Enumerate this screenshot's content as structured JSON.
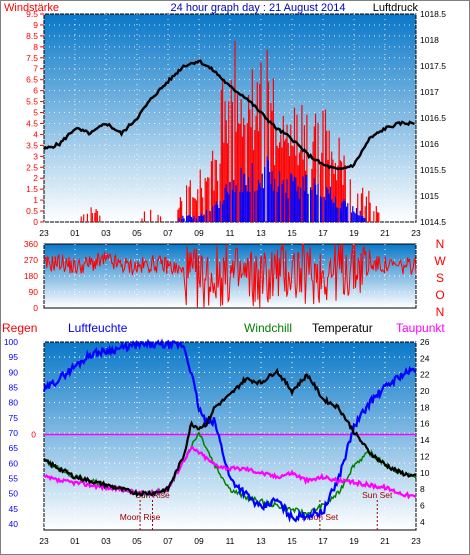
{
  "header": {
    "left_label": "Windstärke",
    "center_title": "24 hour graph day : 21 August 2014",
    "right_label": "Luftdruck"
  },
  "colors": {
    "wind": "#ff0000",
    "wind_gust": "#0000ff",
    "pressure": "#000000",
    "direction": "#ff0000",
    "humidity": "#0000ff",
    "windchill": "#008000",
    "temperature": "#000000",
    "dewpoint": "#ff00ff",
    "rain": "#ff0000",
    "plot_top": "#0a78c8",
    "plot_bottom": "#ffffff"
  },
  "chart_data": [
    {
      "type": "line",
      "name": "wind-pressure",
      "left_axis": {
        "ticks": [
          "0",
          "0.5",
          "1",
          "1.5",
          "2",
          "2.5",
          "3",
          "3.5",
          "4",
          "4.5",
          "5",
          "5.5",
          "6",
          "6.5",
          "7",
          "7.5",
          "8",
          "8.5",
          "9",
          "9.5"
        ],
        "range": [
          0,
          9.5
        ]
      },
      "right_axis": {
        "ticks": [
          "1014.5",
          "1015",
          "1015.5",
          "1016",
          "1016.5",
          "1017",
          "1017.5",
          "1018",
          "1018.5"
        ],
        "range": [
          1014.5,
          1018.5
        ]
      },
      "x_ticks": [
        "23",
        "01",
        "03",
        "05",
        "07",
        "09",
        "11",
        "13",
        "15",
        "17",
        "19",
        "21",
        "23"
      ],
      "pressure": {
        "hours": [
          0,
          1,
          2,
          3,
          4,
          5,
          6,
          7,
          8,
          9,
          10,
          11,
          12,
          13,
          14,
          15,
          16,
          17,
          18,
          19,
          20,
          21,
          22,
          23,
          24
        ],
        "values": [
          1015.9,
          1016.0,
          1016.3,
          1016.2,
          1016.4,
          1016.2,
          1016.5,
          1016.9,
          1017.2,
          1017.5,
          1017.6,
          1017.4,
          1017.1,
          1016.9,
          1016.6,
          1016.3,
          1016.1,
          1015.8,
          1015.6,
          1015.5,
          1015.6,
          1016.1,
          1016.3,
          1016.4,
          1016.4
        ]
      },
      "wind_avg": {
        "hours": [
          0,
          1,
          2,
          3,
          4,
          5,
          6,
          7,
          8,
          9,
          10,
          11,
          12,
          13,
          14,
          15,
          16,
          17,
          18,
          19,
          20,
          21,
          22,
          23,
          24
        ],
        "values": [
          0,
          0,
          0,
          0,
          0,
          0,
          0,
          0,
          0,
          0.3,
          0.3,
          0.8,
          2.0,
          2.5,
          3.0,
          2.5,
          2.0,
          2.0,
          1.8,
          1.2,
          0.8,
          0,
          0,
          0,
          0
        ]
      },
      "wind_gust": {
        "hours": [
          0,
          1,
          2,
          3,
          4,
          5,
          6,
          7,
          8,
          9,
          10,
          11,
          12,
          13,
          14,
          15,
          16,
          17,
          18,
          19,
          20,
          21,
          22,
          23,
          24
        ],
        "values": [
          0,
          0,
          0,
          1.0,
          0,
          0,
          0,
          1.0,
          0,
          1.5,
          2.5,
          3.5,
          9.5,
          6.0,
          9.5,
          6.0,
          5.5,
          5.5,
          5.5,
          4.5,
          2.0,
          1.5,
          0,
          0,
          0
        ]
      }
    },
    {
      "type": "scatter",
      "name": "wind-direction",
      "left_axis": {
        "ticks": [
          "360",
          "270",
          "180",
          "90",
          "0"
        ],
        "range": [
          0,
          360
        ]
      },
      "right_labels": [
        "N",
        "W",
        "S",
        "O",
        "N"
      ],
      "direction": {
        "hours": [
          0,
          1,
          2,
          3,
          4,
          5,
          6,
          7,
          8,
          9,
          10,
          11,
          12,
          13,
          14,
          15,
          16,
          17,
          18,
          19,
          20,
          21,
          22,
          23,
          24
        ],
        "values": [
          240,
          260,
          230,
          250,
          270,
          240,
          230,
          250,
          240,
          200,
          150,
          180,
          190,
          170,
          160,
          200,
          210,
          190,
          200,
          220,
          230,
          250,
          240,
          230,
          240
        ]
      }
    },
    {
      "type": "line",
      "name": "humidity-temperature",
      "legend": [
        "Regen",
        "Luftfeuchte",
        "Windchill",
        "Temperatur",
        "Taupunkt"
      ],
      "left_axis": {
        "ticks": [
          "100",
          "95",
          "90",
          "85",
          "80",
          "75",
          "70",
          "65",
          "60",
          "55",
          "50",
          "45",
          "40"
        ],
        "range": [
          38,
          100
        ],
        "marker_label": "0",
        "marker_value": 69.5
      },
      "right_axis": {
        "ticks": [
          "26",
          "24",
          "22",
          "20",
          "18",
          "16",
          "14",
          "12",
          "10",
          "8",
          "6",
          "4"
        ],
        "range": [
          3,
          26
        ]
      },
      "x_ticks": [
        "23",
        "01",
        "03",
        "05",
        "07",
        "09",
        "11",
        "13",
        "15",
        "17",
        "19",
        "21",
        "23"
      ],
      "events": [
        {
          "label": "Moon Rise",
          "hour": 6.2
        },
        {
          "label": "Sun Rise",
          "hour": 7.0
        },
        {
          "label": "Moon Set",
          "hour": 17.8
        },
        {
          "label": "Sun Set",
          "hour": 21.5
        }
      ],
      "humidity": {
        "hours": [
          0,
          1,
          2,
          3,
          4,
          5,
          6,
          7,
          8,
          9,
          9.5,
          10,
          10.5,
          11,
          12,
          13,
          14,
          15,
          16,
          17,
          18,
          19,
          20,
          21,
          22,
          23,
          24
        ],
        "values": [
          84,
          88,
          92,
          96,
          97,
          98,
          99,
          99,
          99,
          99,
          90,
          78,
          73,
          74,
          55,
          50,
          45,
          48,
          42,
          43,
          44,
          55,
          72,
          80,
          85,
          89,
          91
        ]
      },
      "temperature": {
        "hours": [
          0,
          1,
          2,
          3,
          4,
          5,
          6,
          7,
          8,
          9,
          9.5,
          10,
          10.5,
          11,
          12,
          13,
          14,
          15,
          16,
          17,
          18,
          19,
          20,
          21,
          22,
          23,
          24
        ],
        "values": [
          11.5,
          10.5,
          9.5,
          9.0,
          8.5,
          8.0,
          7.5,
          7.5,
          8.0,
          12.0,
          16.0,
          15.5,
          16.0,
          18.0,
          19.5,
          21.5,
          21.0,
          22.5,
          20.0,
          22.0,
          19.0,
          18.0,
          15.0,
          12.5,
          11.0,
          10.0,
          9.5
        ]
      },
      "dewpoint": {
        "hours": [
          0,
          1,
          2,
          3,
          4,
          5,
          6,
          7,
          8,
          9,
          9.5,
          10,
          11,
          12,
          13,
          14,
          15,
          16,
          17,
          18,
          19,
          20,
          21,
          22,
          23,
          24
        ],
        "values": [
          9.5,
          9.0,
          8.8,
          8.5,
          8.2,
          8.0,
          7.5,
          7.5,
          8.0,
          11.5,
          13.0,
          12.5,
          11.0,
          10.5,
          10.5,
          10.0,
          9.5,
          10.0,
          9.0,
          9.5,
          9.0,
          8.8,
          8.5,
          8.2,
          7.5,
          7.0
        ]
      },
      "windchill": {
        "hours": [
          0,
          1,
          2,
          3,
          4,
          5,
          6,
          7,
          8,
          9,
          10,
          11,
          12,
          13,
          14,
          15,
          16,
          17,
          18,
          19,
          20,
          21,
          22,
          23,
          24
        ],
        "values": [
          11.5,
          10.5,
          9.5,
          9.0,
          8.5,
          8.0,
          7.5,
          7.5,
          8.0,
          11.5,
          15.0,
          11.0,
          8.0,
          7.0,
          6.5,
          6.0,
          5.5,
          5.0,
          6.0,
          7.5,
          11.0,
          12.5,
          11.0,
          10.0,
          9.5
        ]
      }
    }
  ]
}
